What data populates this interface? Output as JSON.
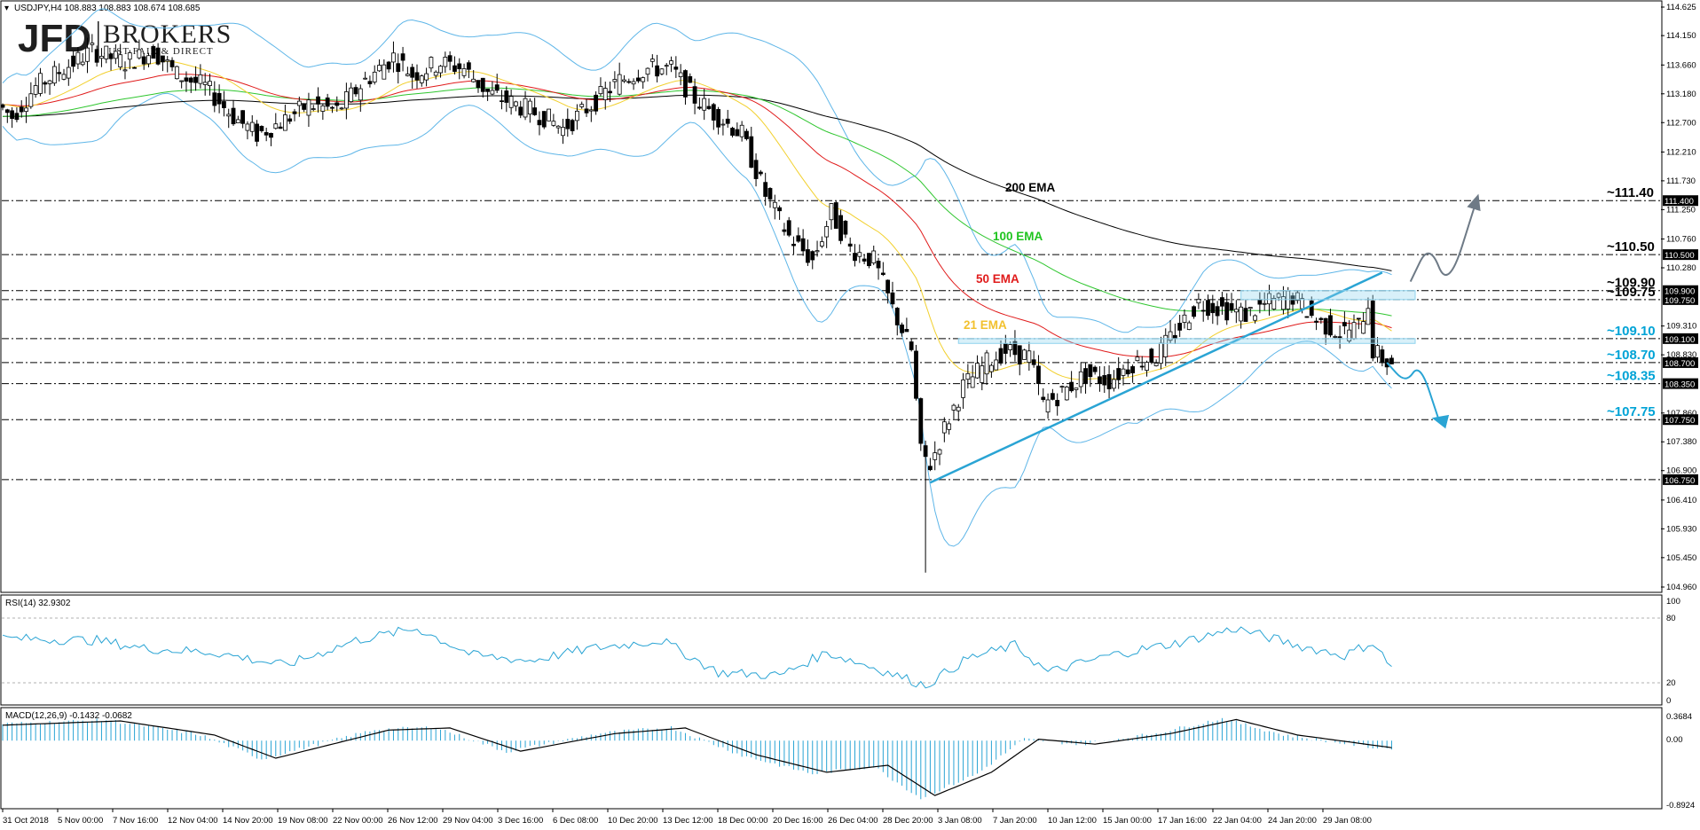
{
  "header": {
    "symbol_info": "USDJPY,H4  108.883 108.883 108.674 108.685"
  },
  "brand": {
    "initials": "JFD",
    "word": "BROKERS",
    "tagline": "JUST FAIR & DIRECT"
  },
  "colors": {
    "candle": "#000000",
    "bollinger": "#5fb6e8",
    "ema21": "#f2d02e",
    "ema50": "#e01b1b",
    "ema100": "#2fc62f",
    "ema200": "#000000",
    "arrow_up": "#6e7a86",
    "arrow_down": "#2aa4d4",
    "trend": "#2aa4d4",
    "rsi": "#2aa4d4",
    "macd_hist": "#2aa4d4",
    "macd_signal": "#000000",
    "accent_blue": "#00a3d6"
  },
  "ema_labels": [
    {
      "text": "200 EMA",
      "color": "#000000"
    },
    {
      "text": "100 EMA",
      "color": "#1fc41f"
    },
    {
      "text": "50 EMA",
      "color": "#e01b1b"
    },
    {
      "text": "21 EMA",
      "color": "#f2c12e"
    }
  ],
  "levels": [
    {
      "label": "~111.40",
      "tag": "111.400",
      "value": 111.4,
      "color": "#000000"
    },
    {
      "label": "~110.50",
      "tag": "110.500",
      "value": 110.5,
      "color": "#000000"
    },
    {
      "label": "~109.90",
      "tag": "109.900",
      "value": 109.9,
      "color": "#000000"
    },
    {
      "label": "~109.75",
      "tag": "109.750",
      "value": 109.75,
      "color": "#000000"
    },
    {
      "label": "~109.10",
      "tag": "109.100",
      "value": 109.1,
      "color": "#00a3d6"
    },
    {
      "label": "~108.70",
      "tag": "108.700",
      "value": 108.7,
      "color": "#00a3d6"
    },
    {
      "label": "~108.35",
      "tag": "108.350",
      "value": 108.35,
      "color": "#00a3d6"
    },
    {
      "label": "~107.75",
      "tag": "107.750",
      "value": 107.75,
      "color": "#00a3d6"
    },
    {
      "tag": "106.750",
      "value": 106.75
    }
  ],
  "price_axis": {
    "ticks": [
      "114.625",
      "114.150",
      "113.660",
      "113.180",
      "112.700",
      "112.210",
      "111.730",
      "111.250",
      "110.760",
      "110.280",
      "109.310",
      "108.830",
      "107.860",
      "107.380",
      "106.900",
      "106.410",
      "105.930",
      "105.450",
      "104.960"
    ]
  },
  "rsi": {
    "label": "RSI(14) 32.9302",
    "ticks": [
      "100",
      "80",
      "20",
      "0"
    ]
  },
  "macd": {
    "label": "MACD(12,26,9) -0.1432 -0.0682",
    "ticks": [
      "0.3684",
      "0.00",
      "-0.8924"
    ]
  },
  "time_axis": {
    "labels": [
      "31 Oct 2018",
      "5 Nov 00:00",
      "7 Nov 16:00",
      "12 Nov 04:00",
      "14 Nov 20:00",
      "19 Nov 08:00",
      "22 Nov 00:00",
      "26 Nov 12:00",
      "29 Nov 04:00",
      "3 Dec 16:00",
      "6 Dec 08:00",
      "10 Dec 20:00",
      "13 Dec 12:00",
      "18 Dec 00:00",
      "20 Dec 16:00",
      "26 Dec 04:00",
      "28 Dec 20:00",
      "3 Jan 08:00",
      "7 Jan 20:00",
      "10 Jan 12:00",
      "15 Jan 00:00",
      "17 Jan 16:00",
      "22 Jan 04:00",
      "24 Jan 20:00",
      "29 Jan 08:00"
    ]
  },
  "chart_data": {
    "type": "candlestick",
    "title": "USDJPY,H4",
    "ylim": [
      104.96,
      114.625
    ],
    "price_path": [
      {
        "t": 0,
        "p": 113.0
      },
      {
        "t": 3,
        "p": 112.8
      },
      {
        "t": 8,
        "p": 113.3
      },
      {
        "t": 14,
        "p": 113.6
      },
      {
        "t": 20,
        "p": 113.9
      },
      {
        "t": 27,
        "p": 113.7
      },
      {
        "t": 33,
        "p": 113.9
      },
      {
        "t": 38,
        "p": 113.5
      },
      {
        "t": 44,
        "p": 113.3
      },
      {
        "t": 50,
        "p": 112.8
      },
      {
        "t": 55,
        "p": 112.5
      },
      {
        "t": 60,
        "p": 112.7
      },
      {
        "t": 66,
        "p": 113.0
      },
      {
        "t": 72,
        "p": 112.9
      },
      {
        "t": 78,
        "p": 113.4
      },
      {
        "t": 84,
        "p": 113.8
      },
      {
        "t": 88,
        "p": 113.5
      },
      {
        "t": 94,
        "p": 113.7
      },
      {
        "t": 99,
        "p": 113.6
      },
      {
        "t": 104,
        "p": 113.2
      },
      {
        "t": 110,
        "p": 113.0
      },
      {
        "t": 116,
        "p": 112.8
      },
      {
        "t": 120,
        "p": 112.6
      },
      {
        "t": 126,
        "p": 113.0
      },
      {
        "t": 132,
        "p": 113.4
      },
      {
        "t": 138,
        "p": 113.6
      },
      {
        "t": 143,
        "p": 113.6
      },
      {
        "t": 148,
        "p": 113.1
      },
      {
        "t": 153,
        "p": 112.8
      },
      {
        "t": 158,
        "p": 112.5
      },
      {
        "t": 163,
        "p": 111.5
      },
      {
        "t": 168,
        "p": 110.8
      },
      {
        "t": 173,
        "p": 110.4
      },
      {
        "t": 177,
        "p": 111.2
      },
      {
        "t": 181,
        "p": 110.6
      },
      {
        "t": 186,
        "p": 110.4
      },
      {
        "t": 190,
        "p": 109.6
      },
      {
        "t": 194,
        "p": 108.9
      },
      {
        "t": 196,
        "p": 107.2
      },
      {
        "t": 198,
        "p": 107.0
      },
      {
        "t": 201,
        "p": 107.6
      },
      {
        "t": 205,
        "p": 108.3
      },
      {
        "t": 210,
        "p": 108.7
      },
      {
        "t": 214,
        "p": 108.9
      },
      {
        "t": 219,
        "p": 108.8
      },
      {
        "t": 222,
        "p": 108.0
      },
      {
        "t": 226,
        "p": 108.2
      },
      {
        "t": 231,
        "p": 108.5
      },
      {
        "t": 236,
        "p": 108.4
      },
      {
        "t": 241,
        "p": 108.7
      },
      {
        "t": 246,
        "p": 108.8
      },
      {
        "t": 251,
        "p": 109.3
      },
      {
        "t": 255,
        "p": 109.7
      },
      {
        "t": 260,
        "p": 109.6
      },
      {
        "t": 265,
        "p": 109.5
      },
      {
        "t": 270,
        "p": 109.7
      },
      {
        "t": 275,
        "p": 109.8
      },
      {
        "t": 280,
        "p": 109.4
      },
      {
        "t": 285,
        "p": 109.2
      },
      {
        "t": 289,
        "p": 109.3
      },
      {
        "t": 291,
        "p": 109.7
      },
      {
        "t": 292,
        "p": 108.9
      },
      {
        "t": 295,
        "p": 108.7
      }
    ],
    "crash_spike_low": 105.2,
    "crash_spike_high": 107.4,
    "trendline": [
      {
        "t": 197,
        "p": 106.7
      },
      {
        "t": 293,
        "p": 110.2
      }
    ],
    "annotations": [
      {
        "text": "200 EMA",
        "t": 210,
        "p": 111.65
      },
      {
        "text": "100 EMA",
        "t": 207,
        "p": 110.9
      },
      {
        "text": "50 EMA",
        "t": 204,
        "p": 110.2
      },
      {
        "text": "21 EMA",
        "t": 202,
        "p": 109.45
      }
    ],
    "scenario_up": [
      {
        "t": 299,
        "p": 110.05
      },
      {
        "t": 303,
        "p": 110.7
      },
      {
        "t": 307,
        "p": 109.9
      },
      {
        "t": 313,
        "p": 111.4
      }
    ],
    "scenario_down": [
      {
        "t": 294,
        "p": 108.7
      },
      {
        "t": 298,
        "p": 108.35
      },
      {
        "t": 301,
        "p": 108.7
      },
      {
        "t": 305,
        "p": 107.75
      }
    ],
    "rsi_path": [
      {
        "t": 0,
        "p": 62
      },
      {
        "t": 20,
        "p": 60
      },
      {
        "t": 30,
        "p": 52
      },
      {
        "t": 45,
        "p": 48
      },
      {
        "t": 60,
        "p": 35
      },
      {
        "t": 75,
        "p": 60
      },
      {
        "t": 88,
        "p": 72
      },
      {
        "t": 100,
        "p": 45
      },
      {
        "t": 112,
        "p": 40
      },
      {
        "t": 125,
        "p": 52
      },
      {
        "t": 140,
        "p": 60
      },
      {
        "t": 152,
        "p": 28
      },
      {
        "t": 165,
        "p": 25
      },
      {
        "t": 175,
        "p": 48
      },
      {
        "t": 185,
        "p": 33
      },
      {
        "t": 196,
        "p": 15
      },
      {
        "t": 205,
        "p": 42
      },
      {
        "t": 215,
        "p": 55
      },
      {
        "t": 222,
        "p": 28
      },
      {
        "t": 235,
        "p": 45
      },
      {
        "t": 250,
        "p": 58
      },
      {
        "t": 262,
        "p": 72
      },
      {
        "t": 275,
        "p": 55
      },
      {
        "t": 285,
        "p": 45
      },
      {
        "t": 291,
        "p": 58
      },
      {
        "t": 295,
        "p": 33
      }
    ],
    "macd_ylim": [
      -0.8924,
      0.3684
    ],
    "macd_signal_path": [
      {
        "t": 0,
        "p": 0.22
      },
      {
        "t": 25,
        "p": 0.28
      },
      {
        "t": 45,
        "p": 0.08
      },
      {
        "t": 58,
        "p": -0.25
      },
      {
        "t": 70,
        "p": -0.05
      },
      {
        "t": 82,
        "p": 0.15
      },
      {
        "t": 95,
        "p": 0.18
      },
      {
        "t": 110,
        "p": -0.15
      },
      {
        "t": 130,
        "p": 0.1
      },
      {
        "t": 145,
        "p": 0.18
      },
      {
        "t": 160,
        "p": -0.2
      },
      {
        "t": 175,
        "p": -0.45
      },
      {
        "t": 188,
        "p": -0.35
      },
      {
        "t": 198,
        "p": -0.78
      },
      {
        "t": 210,
        "p": -0.45
      },
      {
        "t": 220,
        "p": 0.02
      },
      {
        "t": 232,
        "p": -0.05
      },
      {
        "t": 248,
        "p": 0.1
      },
      {
        "t": 262,
        "p": 0.3
      },
      {
        "t": 275,
        "p": 0.08
      },
      {
        "t": 295,
        "p": -0.1
      }
    ]
  }
}
